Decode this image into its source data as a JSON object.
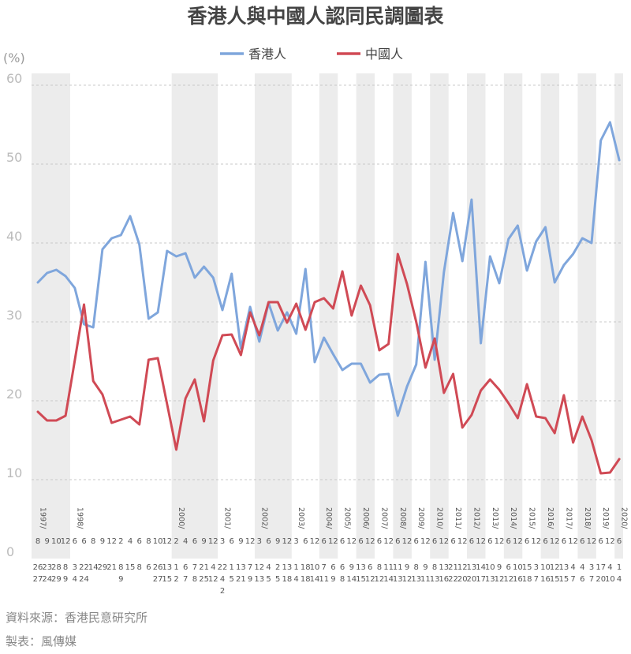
{
  "chart_data": {
    "type": "line",
    "title": "香港人與中國人認同民調圖表",
    "unit_label": "(%)",
    "ylim": [
      0,
      60
    ],
    "yticks": [
      0,
      10,
      20,
      30,
      40,
      50,
      60
    ],
    "grid": true,
    "legend_position": "top-center",
    "year_labels": [
      {
        "year": "1997",
        "index": 0
      },
      {
        "year": "1998",
        "index": 4
      },
      {
        "year": "2000",
        "index": 15
      },
      {
        "year": "2001",
        "index": 20
      },
      {
        "year": "2002",
        "index": 24
      },
      {
        "year": "2003",
        "index": 28
      },
      {
        "year": "2004",
        "index": 31
      },
      {
        "year": "2005",
        "index": 33
      },
      {
        "year": "2006",
        "index": 35
      },
      {
        "year": "2007",
        "index": 37
      },
      {
        "year": "2008",
        "index": 39
      },
      {
        "year": "2009",
        "index": 41
      },
      {
        "year": "2010",
        "index": 43
      },
      {
        "year": "2011",
        "index": 45
      },
      {
        "year": "2012",
        "index": 47
      },
      {
        "year": "2013",
        "index": 49
      },
      {
        "year": "2014",
        "index": 51
      },
      {
        "year": "2015",
        "index": 53
      },
      {
        "year": "2016",
        "index": 55
      },
      {
        "year": "2017",
        "index": 57
      },
      {
        "year": "2018",
        "index": 59
      },
      {
        "year": "2019",
        "index": 61
      },
      {
        "year": "2020",
        "index": 63
      }
    ],
    "x_labels": [
      {
        "month": "8",
        "day": "26\n27"
      },
      {
        "month": "9",
        "day": "23\n24"
      },
      {
        "month": "10",
        "day": "28\n29"
      },
      {
        "month": "12",
        "day": "8\n9"
      },
      {
        "month": "6",
        "day": "3\n4"
      },
      {
        "month": "6",
        "day": "22\n24"
      },
      {
        "month": "8",
        "day": "14"
      },
      {
        "month": "9",
        "day": "29"
      },
      {
        "month": "12",
        "day": "21"
      },
      {
        "month": "2",
        "day": "8\n9"
      },
      {
        "month": "4",
        "day": "15"
      },
      {
        "month": "6",
        "day": "8"
      },
      {
        "month": "8",
        "day": "6"
      },
      {
        "month": "10",
        "day": "26\n27"
      },
      {
        "month": "12",
        "day": "13\n15"
      },
      {
        "month": "2",
        "day": "1\n2"
      },
      {
        "month": "4",
        "day": "6\n7"
      },
      {
        "month": "6",
        "day": "7\n8"
      },
      {
        "month": "9",
        "day": "21\n25"
      },
      {
        "month": "12",
        "day": "4\n12"
      },
      {
        "month": "3",
        "day": "22\n4\n2"
      },
      {
        "month": "6",
        "day": "1\n5"
      },
      {
        "month": "9",
        "day": "13\n21"
      },
      {
        "month": "12",
        "day": "7\n9"
      },
      {
        "month": "3",
        "day": "12\n13"
      },
      {
        "month": "6",
        "day": "4\n5"
      },
      {
        "month": "9",
        "day": "2\n5"
      },
      {
        "month": "12",
        "day": "13\n18"
      },
      {
        "month": "3",
        "day": "1\n4"
      },
      {
        "month": "6",
        "day": "18\n18"
      },
      {
        "month": "12",
        "day": "10\n14"
      },
      {
        "month": "6",
        "day": "7\n11"
      },
      {
        "month": "12",
        "day": "6\n9"
      },
      {
        "month": "6",
        "day": "6\n8"
      },
      {
        "month": "12",
        "day": "9\n14"
      },
      {
        "month": "6",
        "day": "13\n15"
      },
      {
        "month": "12",
        "day": "6\n12"
      },
      {
        "month": "6",
        "day": "8\n12"
      },
      {
        "month": "12",
        "day": "11\n14"
      },
      {
        "month": "6",
        "day": "11\n13"
      },
      {
        "month": "12",
        "day": "9\n12"
      },
      {
        "month": "6",
        "day": "8\n13"
      },
      {
        "month": "12",
        "day": "9\n11"
      },
      {
        "month": "6",
        "day": "8\n13"
      },
      {
        "month": "12",
        "day": "13\n16"
      },
      {
        "month": "6",
        "day": "21\n22"
      },
      {
        "month": "12",
        "day": "12\n20"
      },
      {
        "month": "6",
        "day": "13\n20"
      },
      {
        "month": "12",
        "day": "14\n17"
      },
      {
        "month": "6",
        "day": "10\n13"
      },
      {
        "month": "12",
        "day": "9\n12"
      },
      {
        "month": "6",
        "day": "6\n12"
      },
      {
        "month": "12",
        "day": "10\n16"
      },
      {
        "month": "6",
        "day": "15\n18"
      },
      {
        "month": "12",
        "day": "3\n7"
      },
      {
        "month": "6",
        "day": "10\n16"
      },
      {
        "month": "12",
        "day": "12\n15"
      },
      {
        "month": "6",
        "day": "13\n15"
      },
      {
        "month": "12",
        "day": "4\n7"
      },
      {
        "month": "6",
        "day": "4\n6"
      },
      {
        "month": "12",
        "day": "3\n7"
      },
      {
        "month": "6",
        "day": "17\n20"
      },
      {
        "month": "12",
        "day": "4\n10"
      },
      {
        "month": "6",
        "day": "1\n4"
      }
    ],
    "series": [
      {
        "name": "香港人",
        "color": "#7fa6dc",
        "values": [
          35,
          36.2,
          36.6,
          35.8,
          34.3,
          29.7,
          29.3,
          39.2,
          40.6,
          41,
          43.4,
          39.8,
          30.4,
          31.2,
          39,
          38.3,
          38.7,
          35.6,
          37,
          35.6,
          31.5,
          36.1,
          26.6,
          31.9,
          27.5,
          32.4,
          28.9,
          31.2,
          28.5,
          36.7,
          24.9,
          28,
          25.9,
          23.9,
          24.7,
          24.7,
          22.3,
          23.3,
          23.4,
          18.1,
          21.8,
          24.6,
          37.6,
          25.2,
          36.3,
          43.8,
          37.7,
          45.5,
          27.3,
          38.3,
          34.9,
          40.5,
          42.2,
          36.5,
          40.2,
          42,
          35,
          37.2,
          38.6,
          40.6,
          40,
          53,
          55.3,
          50.5
        ]
      },
      {
        "name": "中國人",
        "color": "#d04a55",
        "values": [
          18.6,
          17.5,
          17.5,
          18.1,
          25.1,
          32.2,
          22.5,
          20.8,
          17.2,
          17.6,
          18,
          17,
          25.2,
          25.4,
          19.6,
          13.8,
          20.3,
          22.7,
          17.4,
          25.1,
          28.3,
          28.4,
          25.8,
          31.2,
          28.3,
          32.5,
          32.5,
          29.9,
          32.3,
          29,
          32.5,
          33,
          31.7,
          36.4,
          30.8,
          34.6,
          32.1,
          26.4,
          27.2,
          38.6,
          34.8,
          30,
          24.2,
          27.9,
          21,
          23.4,
          16.6,
          18.2,
          21.3,
          22.7,
          21.4,
          19.7,
          17.8,
          22.1,
          18,
          17.8,
          15.9,
          20.7,
          14.7,
          18,
          15,
          10.8,
          10.9,
          12.6
        ]
      }
    ]
  },
  "footer": {
    "source": "資料來源：香港民意研究所",
    "maker": "製表：風傳媒"
  }
}
